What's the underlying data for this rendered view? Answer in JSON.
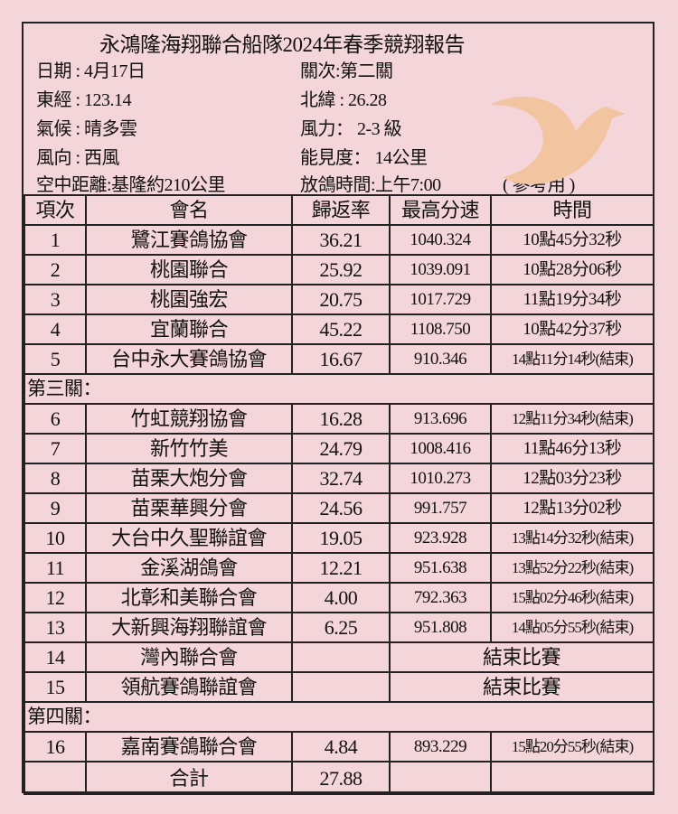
{
  "title": "永鴻隆海翔聯合船隊2024年春季競翔報告",
  "info_left": [
    "日期 : 4月17日",
    "東經 : 123.14",
    "氣候 : 晴多雲",
    "風向 : 西風",
    "空中距離:基隆約210公里"
  ],
  "info_right": [
    "關次:第二關",
    "北緯 : 26.28",
    "風力： 2-3 級",
    "能見度： 14公里",
    "放鴿時間:上午7:00"
  ],
  "reference_note": "( 參考用 )",
  "logo": {
    "icon": "dove-icon",
    "color": "#f3c4a0"
  },
  "columns": [
    "項次",
    "會名",
    "歸返率",
    "最高分速",
    "時間"
  ],
  "sections": [
    {
      "label": "",
      "rows": [
        {
          "no": "1",
          "name": "鷺江賽鴿協會",
          "rate": "36.21",
          "speed": "1040.324",
          "time": "10點45分32秒"
        },
        {
          "no": "2",
          "name": "桃園聯合",
          "rate": "25.92",
          "speed": "1039.091",
          "time": "10點28分06秒"
        },
        {
          "no": "3",
          "name": "桃園強宏",
          "rate": "20.75",
          "speed": "1017.729",
          "time": "11點19分34秒"
        },
        {
          "no": "4",
          "name": "宜蘭聯合",
          "rate": "45.22",
          "speed": "1108.750",
          "time": "10點42分37秒"
        },
        {
          "no": "5",
          "name": "台中永大賽鴿協會",
          "rate": "16.67",
          "speed": "910.346",
          "time": "14點11分14秒(結束)"
        }
      ]
    },
    {
      "label": "第三關：",
      "rows": [
        {
          "no": "6",
          "name": "竹虹競翔協會",
          "rate": "16.28",
          "speed": "913.696",
          "time": "12點11分34秒(結束)"
        },
        {
          "no": "7",
          "name": "新竹竹美",
          "rate": "24.79",
          "speed": "1008.416",
          "time": "11點46分13秒"
        },
        {
          "no": "8",
          "name": "苗栗大炮分會",
          "rate": "32.74",
          "speed": "1010.273",
          "time": "12點03分23秒"
        },
        {
          "no": "9",
          "name": "苗栗華興分會",
          "rate": "24.56",
          "speed": "991.757",
          "time": "12點13分02秒"
        },
        {
          "no": "10",
          "name": "大台中久聖聯誼會",
          "rate": "19.05",
          "speed": "923.928",
          "time": "13點14分32秒(結束)"
        },
        {
          "no": "11",
          "name": "金溪湖鴿會",
          "rate": "12.21",
          "speed": "951.638",
          "time": "13點52分22秒(結束)"
        },
        {
          "no": "12",
          "name": "北彰和美聯合會",
          "rate": "4.00",
          "speed": "792.363",
          "time": "15點02分46秒(結束)"
        },
        {
          "no": "13",
          "name": "大新興海翔聯誼會",
          "rate": "6.25",
          "speed": "951.808",
          "time": "14點05分55秒(結束)"
        },
        {
          "no": "14",
          "name": "灣內聯合會",
          "rate": "",
          "ended": "結束比賽"
        },
        {
          "no": "15",
          "name": "領航賽鴿聯誼會",
          "rate": "",
          "ended": "結束比賽"
        }
      ]
    },
    {
      "label": "第四關：",
      "rows": [
        {
          "no": "16",
          "name": "嘉南賽鴿聯合會",
          "rate": "4.84",
          "speed": "893.229",
          "time": "15點20分55秒(結束)"
        }
      ]
    }
  ],
  "total": {
    "label": "合計",
    "rate": "27.88"
  }
}
